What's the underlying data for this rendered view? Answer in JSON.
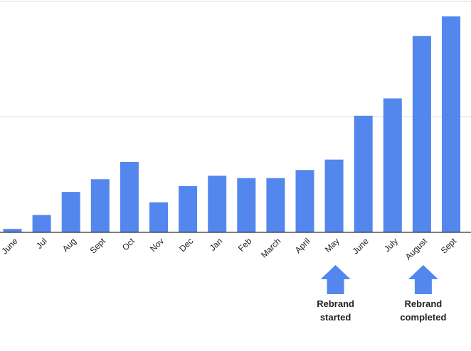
{
  "chart_data": {
    "type": "bar",
    "categories": [
      "June",
      "Jul",
      "Aug",
      "Sept",
      "Oct",
      "Nov",
      "Dec",
      "Jan",
      "Feb",
      "March",
      "April",
      "May",
      "June",
      "July",
      "August",
      "Sept"
    ],
    "values": [
      1.5,
      7.5,
      17.5,
      23,
      30.5,
      13,
      20,
      24.5,
      23.5,
      23.5,
      27,
      31.5,
      50.5,
      58,
      85,
      93.5
    ],
    "ylim": [
      0,
      100
    ],
    "grid": true,
    "legend": "none",
    "bar_color": "#5387ee",
    "annotations": [
      {
        "category_index": 11,
        "lines": [
          "Rebrand",
          "started"
        ]
      },
      {
        "category_index": 14,
        "lines": [
          "Rebrand",
          "completed"
        ]
      }
    ]
  }
}
